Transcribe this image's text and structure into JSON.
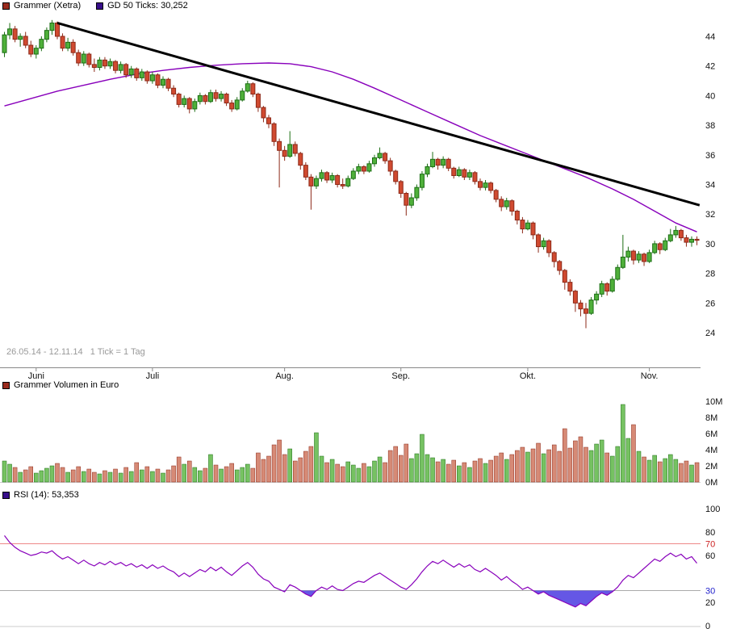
{
  "colors": {
    "background": "#ffffff",
    "up": "#4fb03a",
    "up_stroke": "#1c6e14",
    "down": "#d04a30",
    "down_stroke": "#8c2918",
    "volume_up": "#76c262",
    "volume_down": "#d68a76",
    "ma": "#8800bb",
    "rsi": "#8800bb",
    "rsi_fill": "#4a3ae0",
    "trend": "#000000",
    "axis_text": "#111111",
    "muted_text": "#999999",
    "axis_line": "#888888",
    "rsi_70_line": "#ee8888",
    "rsi_30_line": "#aaaaaa",
    "rsi_70_label": "#cc2222",
    "rsi_30_label": "#2222cc",
    "swatch_main": "#9a2b1d",
    "swatch_ma": "#380e8a"
  },
  "price_panel": {
    "legend_main": "Grammer (Xetra)",
    "legend_ma": "GD 50 Ticks: 30,252",
    "footnote": "26.05.14 - 12.11.14   1 Tick = 1 Tag"
  },
  "volume_panel": {
    "legend": "Grammer Volumen in Euro"
  },
  "rsi_panel": {
    "legend": "RSI (14): 53,353"
  },
  "chart_data": [
    {
      "type": "candlestick",
      "title": "Grammer (Xetra)",
      "date_range": "26.05.14 - 12.11.14",
      "tick_note": "1 Tick = 1 Tag",
      "ylim": [
        23.2,
        45.6
      ],
      "yticks": [
        24,
        26,
        28,
        30,
        32,
        34,
        36,
        38,
        40,
        42,
        44
      ],
      "x_axis": {
        "months": [
          {
            "label": "Juni",
            "day": 6
          },
          {
            "label": "Juli",
            "day": 28
          },
          {
            "label": "Aug.",
            "day": 53
          },
          {
            "label": "Sep.",
            "day": 75
          },
          {
            "label": "Okt.",
            "day": 99
          },
          {
            "label": "Nov.",
            "day": 122
          }
        ]
      },
      "ohlc": [
        [
          42.9,
          44.3,
          42.6,
          44.1
        ],
        [
          44.1,
          44.9,
          43.8,
          44.5
        ],
        [
          44.5,
          44.7,
          43.6,
          43.8
        ],
        [
          43.8,
          44.2,
          43.3,
          44.0
        ],
        [
          44.0,
          44.3,
          43.2,
          43.4
        ],
        [
          43.4,
          43.7,
          42.6,
          42.8
        ],
        [
          42.8,
          43.4,
          42.5,
          43.2
        ],
        [
          43.2,
          44.0,
          43.0,
          43.8
        ],
        [
          43.8,
          44.6,
          43.6,
          44.4
        ],
        [
          44.4,
          45.1,
          44.1,
          44.9
        ],
        [
          44.9,
          45.0,
          43.8,
          44.0
        ],
        [
          44.0,
          44.2,
          43.0,
          43.2
        ],
        [
          43.2,
          43.9,
          43.0,
          43.6
        ],
        [
          43.6,
          43.8,
          42.7,
          42.9
        ],
        [
          42.9,
          43.1,
          42.0,
          42.2
        ],
        [
          42.2,
          43.0,
          42.0,
          42.8
        ],
        [
          42.8,
          42.9,
          41.9,
          42.1
        ],
        [
          42.1,
          42.5,
          41.6,
          41.9
        ],
        [
          41.9,
          42.6,
          41.7,
          42.4
        ],
        [
          42.4,
          42.6,
          41.8,
          42.0
        ],
        [
          42.0,
          42.5,
          41.8,
          42.3
        ],
        [
          42.3,
          42.4,
          41.5,
          41.7
        ],
        [
          41.7,
          42.3,
          41.5,
          42.1
        ],
        [
          42.1,
          42.2,
          41.2,
          41.4
        ],
        [
          41.4,
          42.0,
          41.2,
          41.8
        ],
        [
          41.8,
          41.9,
          41.0,
          41.2
        ],
        [
          41.2,
          41.8,
          41.0,
          41.6
        ],
        [
          41.6,
          41.7,
          40.8,
          41.0
        ],
        [
          41.0,
          41.6,
          40.8,
          41.4
        ],
        [
          41.4,
          41.5,
          40.5,
          40.7
        ],
        [
          40.7,
          41.3,
          40.5,
          41.1
        ],
        [
          41.1,
          41.2,
          40.3,
          40.5
        ],
        [
          40.5,
          40.7,
          39.9,
          40.1
        ],
        [
          40.1,
          40.2,
          39.2,
          39.4
        ],
        [
          39.4,
          40.0,
          39.2,
          39.8
        ],
        [
          39.8,
          39.9,
          38.8,
          39.1
        ],
        [
          39.1,
          39.8,
          38.9,
          39.6
        ],
        [
          39.6,
          40.2,
          39.4,
          40.0
        ],
        [
          40.0,
          40.1,
          39.4,
          39.6
        ],
        [
          39.6,
          40.4,
          39.5,
          40.2
        ],
        [
          40.2,
          40.4,
          39.6,
          39.8
        ],
        [
          39.8,
          40.3,
          39.6,
          40.1
        ],
        [
          40.1,
          40.2,
          39.3,
          39.5
        ],
        [
          39.5,
          39.7,
          38.9,
          39.1
        ],
        [
          39.1,
          39.9,
          39.0,
          39.7
        ],
        [
          39.7,
          40.5,
          39.6,
          40.3
        ],
        [
          40.3,
          41.0,
          40.2,
          40.8
        ],
        [
          40.8,
          40.9,
          39.9,
          40.1
        ],
        [
          40.1,
          40.2,
          38.9,
          39.2
        ],
        [
          39.2,
          39.3,
          38.2,
          38.5
        ],
        [
          38.5,
          38.7,
          37.8,
          38.1
        ],
        [
          38.1,
          38.2,
          36.6,
          36.9
        ],
        [
          36.9,
          37.1,
          33.8,
          36.3
        ],
        [
          36.3,
          36.6,
          35.6,
          35.9
        ],
        [
          35.9,
          37.6,
          35.8,
          36.7
        ],
        [
          36.7,
          36.9,
          35.9,
          36.1
        ],
        [
          36.1,
          36.2,
          35.0,
          35.3
        ],
        [
          35.3,
          35.5,
          34.3,
          34.5
        ],
        [
          34.5,
          34.7,
          32.3,
          33.9
        ],
        [
          33.9,
          34.6,
          33.7,
          34.4
        ],
        [
          34.4,
          35.0,
          34.2,
          34.8
        ],
        [
          34.8,
          34.9,
          34.1,
          34.3
        ],
        [
          34.3,
          34.8,
          34.1,
          34.6
        ],
        [
          34.6,
          34.7,
          33.8,
          34.0
        ],
        [
          34.0,
          34.4,
          33.7,
          33.9
        ],
        [
          33.9,
          34.6,
          33.8,
          34.4
        ],
        [
          34.4,
          35.1,
          34.3,
          34.9
        ],
        [
          34.9,
          35.4,
          34.7,
          35.2
        ],
        [
          35.2,
          35.3,
          34.7,
          34.9
        ],
        [
          34.9,
          35.6,
          34.8,
          35.4
        ],
        [
          35.4,
          36.0,
          35.2,
          35.8
        ],
        [
          35.8,
          36.5,
          35.7,
          36.1
        ],
        [
          36.1,
          36.2,
          35.4,
          35.6
        ],
        [
          35.6,
          35.8,
          34.6,
          34.9
        ],
        [
          34.9,
          35.0,
          34.0,
          34.2
        ],
        [
          34.2,
          34.3,
          33.1,
          33.4
        ],
        [
          33.4,
          33.5,
          31.9,
          32.6
        ],
        [
          32.6,
          33.4,
          32.4,
          33.1
        ],
        [
          33.1,
          34.0,
          32.9,
          33.8
        ],
        [
          33.8,
          34.9,
          33.6,
          34.7
        ],
        [
          34.7,
          35.4,
          34.5,
          35.2
        ],
        [
          35.2,
          36.2,
          35.1,
          35.7
        ],
        [
          35.7,
          35.8,
          35.0,
          35.3
        ],
        [
          35.3,
          35.9,
          35.1,
          35.7
        ],
        [
          35.7,
          35.8,
          34.9,
          35.1
        ],
        [
          35.1,
          35.2,
          34.4,
          34.6
        ],
        [
          34.6,
          35.2,
          34.5,
          35.0
        ],
        [
          35.0,
          35.1,
          34.3,
          34.5
        ],
        [
          34.5,
          35.0,
          34.3,
          34.8
        ],
        [
          34.8,
          34.9,
          34.0,
          34.2
        ],
        [
          34.2,
          34.4,
          33.6,
          33.8
        ],
        [
          33.8,
          34.3,
          33.6,
          34.1
        ],
        [
          34.1,
          34.2,
          33.4,
          33.6
        ],
        [
          33.6,
          33.7,
          32.8,
          33.0
        ],
        [
          33.0,
          33.2,
          32.2,
          32.5
        ],
        [
          32.5,
          33.1,
          32.3,
          32.9
        ],
        [
          32.9,
          33.0,
          31.9,
          32.2
        ],
        [
          32.2,
          32.3,
          31.3,
          31.6
        ],
        [
          31.6,
          31.8,
          30.7,
          31.0
        ],
        [
          31.0,
          31.6,
          30.9,
          31.4
        ],
        [
          31.4,
          31.5,
          30.3,
          30.6
        ],
        [
          30.6,
          30.7,
          29.4,
          29.8
        ],
        [
          29.8,
          30.4,
          29.6,
          30.2
        ],
        [
          30.2,
          30.3,
          29.1,
          29.4
        ],
        [
          29.4,
          29.5,
          28.4,
          28.8
        ],
        [
          28.8,
          28.9,
          27.9,
          28.2
        ],
        [
          28.2,
          28.3,
          26.9,
          27.4
        ],
        [
          27.4,
          27.6,
          26.5,
          26.8
        ],
        [
          26.8,
          26.9,
          25.4,
          26.0
        ],
        [
          26.0,
          26.2,
          25.1,
          25.6
        ],
        [
          25.6,
          26.0,
          24.3,
          25.3
        ],
        [
          25.3,
          26.4,
          25.2,
          26.2
        ],
        [
          26.2,
          26.8,
          25.9,
          26.6
        ],
        [
          26.6,
          27.5,
          26.4,
          27.3
        ],
        [
          27.3,
          27.4,
          26.5,
          26.8
        ],
        [
          26.8,
          27.8,
          26.7,
          27.6
        ],
        [
          27.6,
          28.6,
          27.5,
          28.4
        ],
        [
          28.4,
          30.6,
          28.3,
          29.1
        ],
        [
          29.1,
          29.8,
          28.8,
          29.5
        ],
        [
          29.5,
          29.6,
          28.6,
          28.9
        ],
        [
          28.9,
          29.5,
          28.7,
          29.3
        ],
        [
          29.3,
          29.4,
          28.5,
          28.8
        ],
        [
          28.8,
          29.6,
          28.7,
          29.4
        ],
        [
          29.4,
          30.2,
          29.3,
          30.0
        ],
        [
          30.0,
          30.1,
          29.3,
          29.6
        ],
        [
          29.6,
          30.4,
          29.5,
          30.2
        ],
        [
          30.2,
          31.0,
          30.1,
          30.6
        ],
        [
          30.6,
          31.2,
          30.4,
          30.9
        ],
        [
          30.9,
          31.0,
          30.2,
          30.4
        ],
        [
          30.4,
          30.6,
          29.8,
          30.1
        ],
        [
          30.1,
          30.5,
          29.8,
          30.3
        ],
        [
          30.3,
          30.5,
          29.9,
          30.25
        ]
      ],
      "ma50": {
        "label": "GD 50 Ticks: 30,252",
        "last_value": 30.252,
        "points": [
          [
            0,
            39.3
          ],
          [
            5,
            39.8
          ],
          [
            10,
            40.3
          ],
          [
            15,
            40.7
          ],
          [
            20,
            41.1
          ],
          [
            25,
            41.45
          ],
          [
            30,
            41.7
          ],
          [
            35,
            41.9
          ],
          [
            40,
            42.05
          ],
          [
            45,
            42.15
          ],
          [
            50,
            42.2
          ],
          [
            54,
            42.15
          ],
          [
            58,
            41.95
          ],
          [
            62,
            41.6
          ],
          [
            66,
            41.1
          ],
          [
            70,
            40.5
          ],
          [
            75,
            39.7
          ],
          [
            80,
            38.9
          ],
          [
            85,
            38.1
          ],
          [
            90,
            37.3
          ],
          [
            95,
            36.6
          ],
          [
            100,
            35.9
          ],
          [
            105,
            35.2
          ],
          [
            110,
            34.5
          ],
          [
            115,
            33.7
          ],
          [
            119,
            33.0
          ],
          [
            123,
            32.2
          ],
          [
            127,
            31.4
          ],
          [
            131,
            30.8
          ]
        ]
      },
      "trendline": {
        "d1": 10,
        "p1": 44.9,
        "d2": 131.5,
        "p2": 32.6
      }
    },
    {
      "type": "bar",
      "title": "Grammer Volumen in Euro",
      "unit": "M",
      "ylim": [
        0,
        10
      ],
      "yticks": [
        0,
        2,
        4,
        6,
        8,
        10
      ],
      "ytick_suffix": "M",
      "values": [
        2.6,
        2.2,
        1.8,
        1.2,
        1.5,
        1.9,
        1.1,
        1.4,
        1.7,
        2.0,
        2.3,
        1.8,
        1.2,
        1.5,
        1.9,
        1.3,
        1.6,
        1.2,
        1.0,
        1.4,
        1.2,
        1.6,
        1.1,
        1.8,
        1.3,
        2.4,
        1.5,
        1.9,
        1.3,
        1.6,
        1.1,
        1.5,
        2.0,
        3.1,
        2.2,
        2.6,
        1.8,
        1.4,
        1.7,
        3.4,
        2.1,
        1.6,
        1.9,
        2.3,
        1.5,
        1.8,
        2.2,
        1.7,
        3.6,
        2.8,
        3.2,
        4.6,
        5.2,
        3.4,
        4.1,
        2.6,
        3.0,
        3.8,
        4.4,
        6.1,
        3.2,
        2.4,
        2.8,
        2.2,
        1.9,
        2.5,
        2.1,
        1.7,
        2.3,
        1.9,
        2.6,
        3.1,
        2.4,
        3.9,
        4.4,
        3.3,
        4.7,
        2.9,
        3.5,
        5.9,
        3.4,
        3.0,
        2.5,
        2.8,
        2.2,
        2.7,
        2.0,
        2.4,
        1.8,
        2.6,
        2.9,
        2.3,
        2.7,
        3.2,
        3.6,
        2.8,
        3.4,
        3.9,
        4.3,
        3.7,
        4.1,
        4.8,
        3.5,
        4.0,
        4.6,
        3.8,
        6.6,
        4.2,
        5.1,
        5.6,
        4.3,
        3.9,
        4.7,
        5.2,
        3.6,
        3.2,
        4.4,
        9.6,
        5.4,
        7.1,
        3.8,
        3.1,
        2.7,
        3.3,
        2.5,
        2.9,
        3.4,
        2.8,
        2.3,
        2.6,
        2.1,
        2.4
      ]
    },
    {
      "type": "line",
      "title": "RSI (14): 53,353",
      "last_value": 53.353,
      "ylim": [
        0,
        100
      ],
      "overbought": 70,
      "oversold": 30,
      "yticks": [
        {
          "v": 100,
          "label": "100"
        },
        {
          "v": 80,
          "label": "80"
        },
        {
          "v": 70,
          "label": "70",
          "color": "#cc2222"
        },
        {
          "v": 60,
          "label": "60"
        },
        {
          "v": 30,
          "label": "30",
          "color": "#2222cc"
        },
        {
          "v": 20,
          "label": "20"
        },
        {
          "v": 0,
          "label": "0"
        }
      ],
      "values": [
        77,
        71,
        67,
        64,
        62,
        60,
        61,
        63,
        62,
        64,
        60,
        57,
        59,
        56,
        53,
        56,
        53,
        51,
        54,
        52,
        55,
        52,
        54,
        51,
        53,
        50,
        52,
        49,
        52,
        49,
        51,
        48,
        46,
        42,
        45,
        42,
        45,
        48,
        46,
        50,
        47,
        50,
        46,
        43,
        47,
        51,
        54,
        50,
        44,
        40,
        38,
        33,
        31,
        29,
        35,
        33,
        30,
        27,
        25,
        30,
        33,
        31,
        34,
        31,
        30,
        33,
        36,
        38,
        37,
        40,
        43,
        45,
        42,
        39,
        36,
        33,
        31,
        35,
        40,
        46,
        51,
        55,
        53,
        56,
        53,
        50,
        53,
        50,
        52,
        48,
        46,
        49,
        46,
        43,
        39,
        42,
        38,
        35,
        31,
        33,
        30,
        27,
        29,
        26,
        24,
        22,
        20,
        18,
        16,
        19,
        17,
        21,
        25,
        28,
        26,
        29,
        33,
        39,
        43,
        41,
        45,
        49,
        53,
        57,
        55,
        59,
        62,
        59,
        61,
        57,
        59,
        53.4
      ]
    }
  ]
}
